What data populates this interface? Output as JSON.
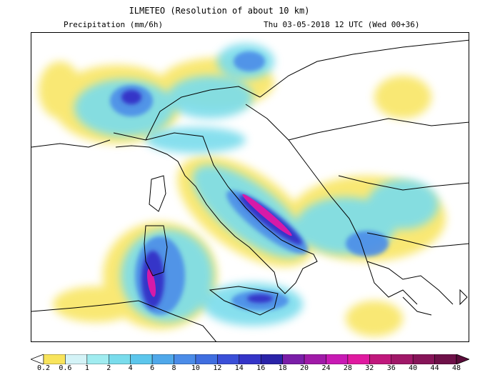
{
  "header": {
    "title": "ILMETEO (Resolution of about 10 km)",
    "variable": "Precipitation (mm/6h)",
    "valid_time": "Thu 03-05-2018 12 UTC (Wed 00+36)"
  },
  "legend": {
    "thresholds": [
      "0.2",
      "0.6",
      "1",
      "2",
      "4",
      "6",
      "8",
      "10",
      "12",
      "14",
      "16",
      "18",
      "20",
      "24",
      "28",
      "32",
      "36",
      "40",
      "44",
      "48"
    ],
    "colors": [
      "#fefefe",
      "#f8e45c",
      "#d4f3f7",
      "#a0ecf0",
      "#79dcec",
      "#5cc6ec",
      "#4fa8ea",
      "#4b8ce8",
      "#3f6ee0",
      "#3a4fd8",
      "#3535c8",
      "#2a23a8",
      "#7a1ea8",
      "#a01aa8",
      "#c81ab4",
      "#e01aa0",
      "#c0187c",
      "#a01868",
      "#861458",
      "#6e1048",
      "#5a0c3a"
    ]
  },
  "map": {
    "region": "Italy and surrounding Mediterranean",
    "land_color": "#ffffff",
    "sea_color": "#ffffff",
    "border_color": "#000000"
  }
}
